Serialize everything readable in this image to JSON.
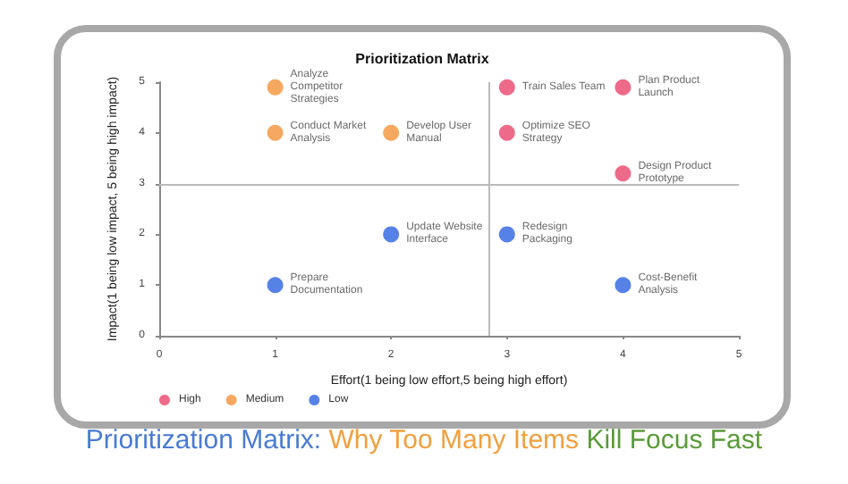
{
  "chart_data": {
    "type": "scatter",
    "title": "Prioritization Matrix",
    "xlabel": "Effort(1 being low effort,5 being high effort)",
    "ylabel": "Impact(1 being low impact, 5 being high impact)",
    "xlim": [
      0,
      5
    ],
    "xticks": [
      0,
      1,
      2,
      3,
      4,
      5
    ],
    "ylim": [
      0,
      5
    ],
    "yticks": [
      0,
      1,
      2,
      3,
      4,
      5
    ],
    "series": [
      {
        "name": "High",
        "color": "#e8456b",
        "x": [
          3,
          4,
          3,
          4
        ],
        "values": [
          4.9,
          4.9,
          4,
          3.2
        ],
        "value_labels": [
          "Train Sales Team",
          "Plan Product Launch",
          "Optimize SEO Strategy",
          "Design Product Prototype"
        ]
      },
      {
        "name": "Medium",
        "color": "#f39237",
        "x": [
          1,
          1,
          2
        ],
        "values": [
          4.9,
          4,
          4
        ],
        "value_labels": [
          "Analyze Competitor Strategies",
          "Conduct Market Analysis",
          "Develop User Manual"
        ]
      },
      {
        "name": "Low",
        "color": "#2c62e0",
        "x": [
          1,
          2,
          3,
          4
        ],
        "values": [
          1,
          2,
          2,
          1
        ],
        "value_labels": [
          "Prepare Documentation",
          "Update Website Interface",
          "Redesign Packaging",
          "Cost-Benefit Analysis"
        ]
      }
    ],
    "ref_lines": [
      {
        "axis": "x",
        "value": 2.85,
        "color": "#bbbbbb"
      },
      {
        "axis": "y",
        "value": 3,
        "color": "#bbbbbb"
      }
    ],
    "annotations": [
      "Prioritization Matrix:",
      "Why Too Many Items",
      "Kill Focus Fast"
    ],
    "grid": false,
    "legend": "bottom left",
    "marker": "circle"
  }
}
